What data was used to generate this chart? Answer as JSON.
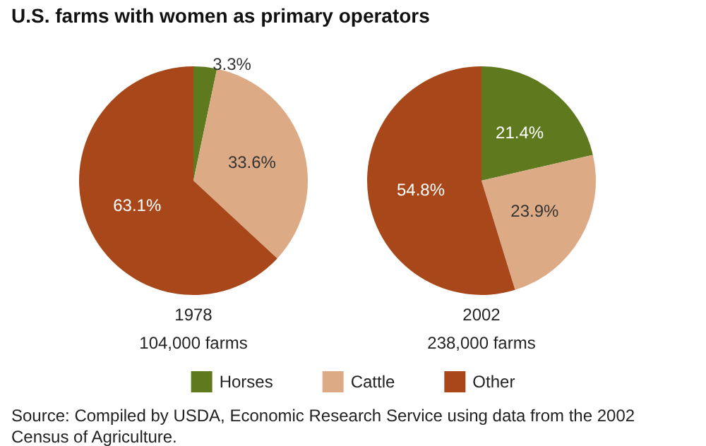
{
  "chart_data": {
    "type": "pie",
    "title": "U.S. farms with women as primary operators",
    "categories": [
      "Horses",
      "Cattle",
      "Other"
    ],
    "colors": [
      "#5f7a1e",
      "#dcab86",
      "#a8481a"
    ],
    "legend": "bottom",
    "series": [
      {
        "name": "1978",
        "values": [
          3.3,
          33.6,
          63.1
        ],
        "value_labels": [
          "3.3%",
          "33.6%",
          "63.1%"
        ]
      },
      {
        "name": "2002",
        "values": [
          21.4,
          23.9,
          54.8
        ],
        "value_labels": [
          "21.4%",
          "23.9%",
          "54.8%"
        ]
      }
    ],
    "annotations": [
      "104,000 farms",
      "238,000 farms",
      "Source: Compiled by USDA, Economic Research Service using data from the 2002 Census of Agriculture."
    ]
  }
}
